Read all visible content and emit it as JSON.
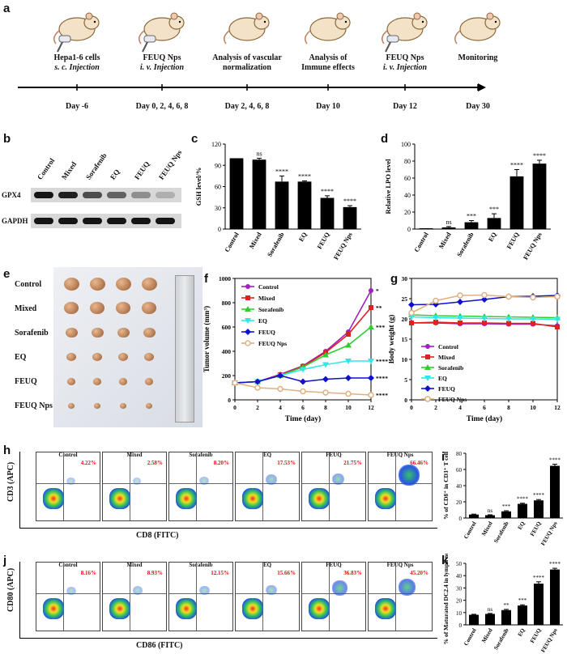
{
  "panels": {
    "a": "a",
    "b": "b",
    "c": "c",
    "d": "d",
    "e": "e",
    "f": "f",
    "g": "g",
    "h": "h",
    "i": "i",
    "j": "j",
    "k": "k"
  },
  "timeline": {
    "events": [
      {
        "line1": "Hepa1-6 cells",
        "line2": "s. c. Injection",
        "day": "Day -6"
      },
      {
        "line1": "FEUQ Nps",
        "line2": "i. v. Injection",
        "day": "Day 0, 2, 4, 6, 8"
      },
      {
        "line1": "Analysis of vascular",
        "line2": "normalization",
        "day": "Day 2, 4, 6, 8"
      },
      {
        "line1": "Analysis of",
        "line2": "Immune effects",
        "day": "Day 10"
      },
      {
        "line1": "FEUQ Nps",
        "line2": "i. v. Injection",
        "day": "Day 12"
      },
      {
        "line1": "Monitoring",
        "line2": "",
        "day": "Day 30"
      }
    ]
  },
  "western": {
    "lanes": [
      "Control",
      "Mixed",
      "Sorafenib",
      "EQ",
      "FEUQ",
      "FEUQ Nps"
    ],
    "rows": [
      "GPX4",
      "GAPDH"
    ],
    "gpx4_intensity": [
      0.95,
      0.9,
      0.7,
      0.6,
      0.4,
      0.25
    ]
  },
  "colors": {
    "Control": "#a020c0",
    "Mixed": "#e02020",
    "Sorafenib": "#33cc33",
    "EQ": "#33e6e6",
    "FEUQ": "#1010d0",
    "FEUQ Nps": "#e0b080"
  },
  "chart_data": [
    {
      "id": "c",
      "type": "bar",
      "title": "",
      "categories": [
        "Control",
        "Mixed",
        "Sorafenib",
        "EQ",
        "FEUQ",
        "FEUQ Nps"
      ],
      "values": [
        100,
        98,
        67,
        67,
        44,
        31
      ],
      "errors": [
        0,
        2,
        8,
        1,
        3,
        2
      ],
      "significance": [
        "",
        "ns",
        "****",
        "****",
        "****",
        "****"
      ],
      "ylabel": "GSH level/%",
      "ylim": [
        0,
        120
      ],
      "yticks": [
        0,
        30,
        60,
        90,
        120
      ]
    },
    {
      "id": "d",
      "type": "bar",
      "title": "",
      "categories": [
        "Control",
        "Mixed",
        "Sorafenib",
        "EQ",
        "FEUQ",
        "FEUQ Nps"
      ],
      "values": [
        1,
        2,
        8,
        13,
        62,
        77
      ],
      "errors": [
        0,
        1,
        2,
        5,
        8,
        4
      ],
      "significance": [
        "",
        "ns",
        "***",
        "***",
        "****",
        "****"
      ],
      "ylabel": "Relative LPO level",
      "ylim": [
        0,
        100
      ],
      "yticks": [
        0,
        20,
        40,
        60,
        80,
        100
      ]
    },
    {
      "id": "f",
      "type": "line",
      "x": [
        0,
        2,
        4,
        6,
        8,
        10,
        12
      ],
      "series": [
        {
          "name": "Control",
          "values": [
            140,
            150,
            210,
            280,
            400,
            560,
            900
          ]
        },
        {
          "name": "Mixed",
          "values": [
            140,
            150,
            205,
            275,
            390,
            540,
            760
          ]
        },
        {
          "name": "Sorafenib",
          "values": [
            140,
            150,
            200,
            270,
            370,
            450,
            600
          ]
        },
        {
          "name": "EQ",
          "values": [
            140,
            150,
            200,
            250,
            290,
            320,
            320
          ]
        },
        {
          "name": "FEUQ",
          "values": [
            140,
            150,
            200,
            150,
            170,
            180,
            180
          ]
        },
        {
          "name": "FEUQ Nps",
          "values": [
            140,
            100,
            90,
            70,
            60,
            50,
            40
          ]
        }
      ],
      "significance": [
        "*",
        "**",
        "***",
        "****",
        "****"
      ],
      "xlabel": "Time (day)",
      "ylabel": "Tumor volume (mm³)",
      "xlim": [
        0,
        12
      ],
      "ylim": [
        0,
        1000
      ],
      "xticks": [
        0,
        2,
        4,
        6,
        8,
        10,
        12
      ],
      "yticks": [
        0,
        200,
        400,
        600,
        800,
        1000
      ]
    },
    {
      "id": "g",
      "type": "line",
      "x": [
        0,
        2,
        4,
        6,
        8,
        10,
        12
      ],
      "series": [
        {
          "name": "Control",
          "values": [
            19,
            19,
            18.8,
            18.8,
            18.7,
            18.7,
            18.3
          ]
        },
        {
          "name": "Mixed",
          "values": [
            19,
            19.2,
            19,
            19,
            18.9,
            18.9,
            18
          ]
        },
        {
          "name": "Sorafenib",
          "values": [
            21,
            20.8,
            20.7,
            20.6,
            20.5,
            20.4,
            20.3
          ]
        },
        {
          "name": "EQ",
          "values": [
            20.5,
            20.3,
            20.2,
            20.1,
            20,
            20,
            19.9
          ]
        },
        {
          "name": "FEUQ",
          "values": [
            23.5,
            23.6,
            24.2,
            24.8,
            25.5,
            25.6,
            25.8
          ]
        },
        {
          "name": "FEUQ Nps",
          "values": [
            21.5,
            24.5,
            25.8,
            25.9,
            25.5,
            25.3,
            25.5
          ]
        }
      ],
      "xlabel": "Time (day)",
      "ylabel": "Body weight (g)",
      "xlim": [
        0,
        12
      ],
      "ylim": [
        0,
        30
      ],
      "xticks": [
        0,
        2,
        4,
        6,
        8,
        10,
        12
      ],
      "yticks": [
        0,
        5,
        10,
        15,
        20,
        25,
        30
      ]
    },
    {
      "id": "i",
      "type": "bar",
      "categories": [
        "Control",
        "Mixed",
        "Sorafenib",
        "EQ",
        "FEUQ",
        "FEUQ Nps"
      ],
      "values": [
        4.3,
        3.5,
        8.2,
        17.5,
        21.8,
        64.5
      ],
      "errors": [
        0.5,
        0.5,
        0.8,
        0.8,
        1,
        2
      ],
      "significance": [
        "",
        "ns",
        "***",
        "****",
        "****",
        "****"
      ],
      "ylabel": "% of CD8⁺ in CD3⁺ T cell",
      "ylim": [
        0,
        80
      ],
      "yticks": [
        0,
        20,
        40,
        60,
        80
      ]
    },
    {
      "id": "k",
      "type": "bar",
      "categories": [
        "Control",
        "Mixed",
        "Sorafenib",
        "EQ",
        "FEUQ",
        "FEUQ Nps"
      ],
      "values": [
        8.2,
        8.9,
        12,
        15.7,
        33.5,
        45
      ],
      "errors": [
        0.4,
        0.4,
        0.6,
        0.6,
        1.5,
        1
      ],
      "significance": [
        "",
        "ns",
        "**",
        "***",
        "****",
        "****"
      ],
      "ylabel": "% of Maturated DC2.4 in lymph nodes",
      "ylim": [
        0,
        50
      ],
      "yticks": [
        0,
        10,
        20,
        30,
        40,
        50
      ]
    }
  ],
  "photo": {
    "rows": [
      "Control",
      "Mixed",
      "Sorafenib",
      "EQ",
      "FEUQ",
      "FEUQ Nps"
    ],
    "tumor_size": [
      1,
      0.9,
      0.75,
      0.6,
      0.45,
      0.3
    ]
  },
  "flow_h": {
    "ylabel": "CD3 (APC)",
    "xlabel": "CD8 (FITC)",
    "samples": [
      {
        "name": "Control",
        "pct": "4.22%"
      },
      {
        "name": "Mixed",
        "pct": "2.58%"
      },
      {
        "name": "Sorafenib",
        "pct": "8.20%"
      },
      {
        "name": "EQ",
        "pct": "17.53%"
      },
      {
        "name": "FEUQ",
        "pct": "21.75%"
      },
      {
        "name": "FEUQ Nps",
        "pct": "66.46%"
      }
    ]
  },
  "flow_j": {
    "ylabel": "CD80 (APC)",
    "xlabel": "CD86 (FITC)",
    "samples": [
      {
        "name": "Control",
        "pct": "8.16%"
      },
      {
        "name": "Mixed",
        "pct": "8.93%"
      },
      {
        "name": "Sorafenib",
        "pct": "12.15%"
      },
      {
        "name": "EQ",
        "pct": "15.66%"
      },
      {
        "name": "FEUQ",
        "pct": "36.83%"
      },
      {
        "name": "FEUQ Nps",
        "pct": "45.20%"
      }
    ]
  }
}
